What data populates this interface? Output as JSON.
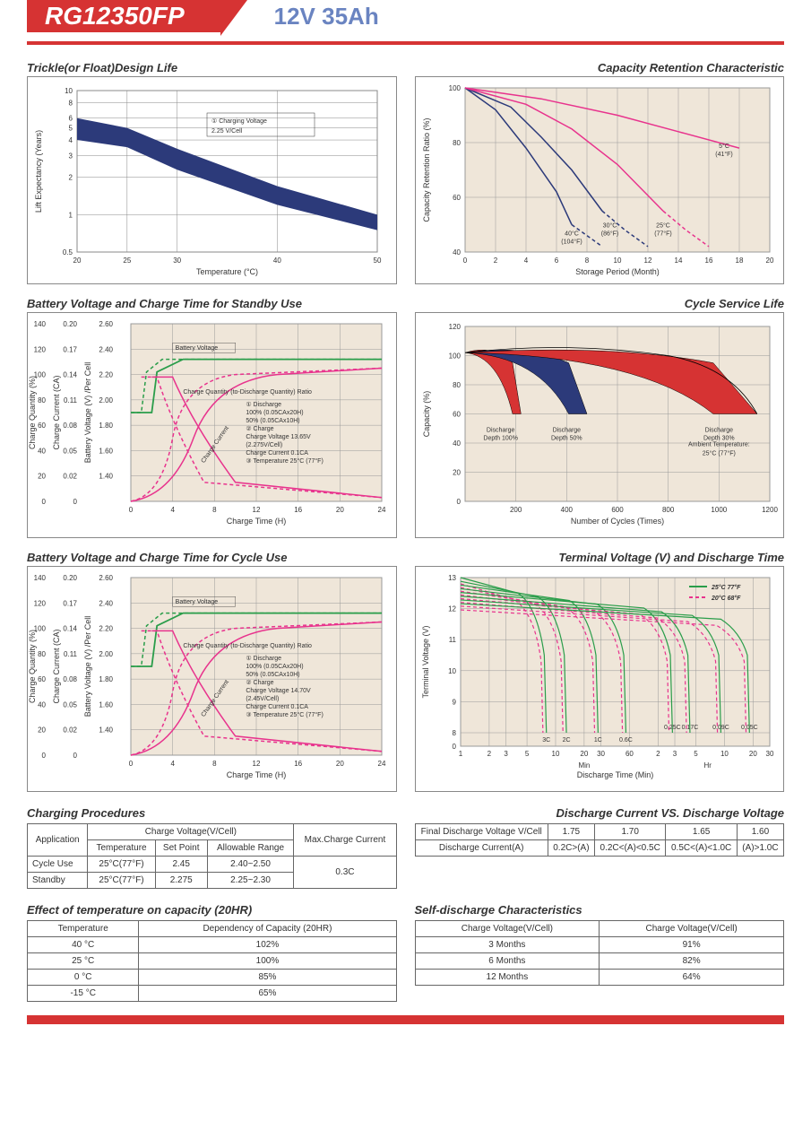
{
  "header": {
    "model": "RG12350FP",
    "spec": "12V  35Ah"
  },
  "chart1": {
    "title": "Trickle(or Float)Design Life",
    "xlabel": "Temperature (°C)",
    "ylabel": "Lift Expectancy (Years)",
    "xticks": [
      "20",
      "25",
      "30",
      "40",
      "50"
    ],
    "yticks": [
      "0.5",
      "1",
      "2",
      "3",
      "4",
      "5",
      "6",
      "8",
      "10"
    ],
    "anno": "① Charging Voltage\n2.25 V/Cell",
    "band_color": "#2c3a7a",
    "grid_color": "#888",
    "bg": "#ffffff"
  },
  "chart2": {
    "title": "Capacity Retention Characteristic",
    "xlabel": "Storage Period (Month)",
    "ylabel": "Capacity Retention Ratio (%)",
    "xticks": [
      "0",
      "2",
      "4",
      "6",
      "8",
      "10",
      "12",
      "14",
      "16",
      "18",
      "20"
    ],
    "yticks": [
      "40",
      "60",
      "80",
      "100"
    ],
    "series": [
      {
        "label": "40°C (104°F)",
        "color": "#2c3a7a",
        "x_end": 7,
        "y_end": 50,
        "dash_x": 9
      },
      {
        "label": "30°C (86°F)",
        "color": "#2c3a7a",
        "x_end": 9,
        "y_end": 55,
        "dash_x": 12
      },
      {
        "label": "25°C (77°F)",
        "color": "#e8338d",
        "x_end": 13,
        "y_end": 55,
        "dash_x": 16
      },
      {
        "label": "5°C (41°F)",
        "color": "#e8338d",
        "x_end": 18,
        "y_end": 78
      }
    ],
    "grid_color": "#999",
    "bg": "#efe6d9"
  },
  "chart3": {
    "title": "Battery Voltage and Charge Time for Standby Use",
    "xlabel": "Charge Time (H)",
    "y1label": "Charge Quantity (%)",
    "y2label": "Charge Current (CA)",
    "y3label": "Battery Voltage (V) /Per Cell",
    "xticks": [
      "0",
      "4",
      "8",
      "12",
      "16",
      "20",
      "24"
    ],
    "y1ticks": [
      "0",
      "20",
      "40",
      "60",
      "80",
      "100",
      "120",
      "140"
    ],
    "y2ticks": [
      "0",
      "0.02",
      "0.05",
      "0.08",
      "0.11",
      "0.14",
      "0.17",
      "0.20"
    ],
    "y3ticks": [
      "",
      "1.40",
      "1.60",
      "1.80",
      "2.00",
      "2.20",
      "2.40",
      "2.60"
    ],
    "anno_items": [
      "Battery Voltage",
      "Charge Quantity (to-Discharge Quantity) Ratio",
      "① Discharge",
      "  100% (0.05CAx20H)",
      "  50% (0.05CAx10H)",
      "② Charge",
      "  Charge Voltage 13.65V",
      "  (2.275V/Cell)",
      "  Charge Current 0.1CA",
      "③ Temperature 25°C (77°F)",
      "Charge Current"
    ],
    "c_green": "#2a9d4a",
    "c_pink": "#e8338d",
    "bg": "#efe6d9",
    "grid_color": "#999"
  },
  "chart4": {
    "title": "Cycle Service Life",
    "xlabel": "Number of Cycles (Times)",
    "ylabel": "Capacity (%)",
    "xticks": [
      "200",
      "400",
      "600",
      "800",
      "1000",
      "1200"
    ],
    "yticks": [
      "0",
      "20",
      "40",
      "60",
      "80",
      "100",
      "120"
    ],
    "bands": [
      {
        "label": "Discharge\nDepth 100%",
        "color": "#d63333"
      },
      {
        "label": "Discharge\nDepth 50%",
        "color": "#2c3a7a"
      },
      {
        "label": "Discharge\nDepth 30%",
        "color": "#d63333"
      }
    ],
    "anno": "Ambient Temperature:\n25°C (77°F)",
    "bg": "#efe6d9",
    "grid_color": "#999"
  },
  "chart5": {
    "title": "Battery Voltage and Charge Time for Cycle Use",
    "xlabel": "Charge Time (H)",
    "y1label": "Charge Quantity (%)",
    "y2label": "Charge Current (CA)",
    "y3label": "Battery Voltage (V) /Per Cell",
    "xticks": [
      "0",
      "4",
      "8",
      "12",
      "16",
      "20",
      "24"
    ],
    "y1ticks": [
      "0",
      "20",
      "40",
      "60",
      "80",
      "100",
      "120",
      "140"
    ],
    "y2ticks": [
      "0",
      "0.02",
      "0.05",
      "0.08",
      "0.11",
      "0.14",
      "0.17",
      "0.20"
    ],
    "y3ticks": [
      "",
      "1.40",
      "1.60",
      "1.80",
      "2.00",
      "2.20",
      "2.40",
      "2.60"
    ],
    "anno_items": [
      "Battery Voltage",
      "Charge Quantity (to-Discharge Quantity) Ratio",
      "① Discharge",
      "  100% (0.05CAx20H)",
      "  50% (0.05CAx10H)",
      "② Charge",
      "  Charge Voltage 14.70V",
      "  (2.45V/Cell)",
      "  Charge Current 0.1CA",
      "③ Temperature 25°C (77°F)",
      "Charge Current"
    ],
    "c_green": "#2a9d4a",
    "c_pink": "#e8338d",
    "bg": "#efe6d9",
    "grid_color": "#999"
  },
  "chart6": {
    "title": "Terminal Voltage (V) and Discharge Time",
    "xlabel": "Discharge Time (Min)",
    "ylabel": "Terminal Voltage (V)",
    "xticks_min": [
      "1",
      "2",
      "3",
      "5",
      "10",
      "20",
      "30",
      "60"
    ],
    "xticks_hr": [
      "2",
      "3",
      "5",
      "10",
      "20",
      "30"
    ],
    "yticks": [
      "0",
      "8",
      "9",
      "10",
      "11",
      "12",
      "13"
    ],
    "legend": [
      {
        "label": "25°C 77°F",
        "color": "#2a9d4a",
        "dash": false
      },
      {
        "label": "20°C 68°F",
        "color": "#e8338d",
        "dash": true
      }
    ],
    "curve_labels": [
      "3C",
      "2C",
      "1C",
      "0.6C",
      "0.25C",
      "0.17C",
      "0.09C",
      "0.05C"
    ],
    "min_label": "Min",
    "hr_label": "Hr",
    "bg": "#efe6d9",
    "grid_color": "#999"
  },
  "table1": {
    "title": "Charging Procedures",
    "headers": [
      "Application",
      "Charge Voltage(V/Cell)",
      "Max.Charge Current"
    ],
    "sub": [
      "Temperature",
      "Set Point",
      "Allowable Range"
    ],
    "rows": [
      [
        "Cycle Use",
        "25°C(77°F)",
        "2.45",
        "2.40~2.50"
      ],
      [
        "Standby",
        "25°C(77°F)",
        "2.275",
        "2.25~2.30"
      ]
    ],
    "max_current": "0.3C"
  },
  "table2": {
    "title": "Discharge Current VS. Discharge Voltage",
    "row1_h": "Final Discharge Voltage V/Cell",
    "row1": [
      "1.75",
      "1.70",
      "1.65",
      "1.60"
    ],
    "row2_h": "Discharge Current(A)",
    "row2": [
      "0.2C>(A)",
      "0.2C<(A)<0.5C",
      "0.5C<(A)<1.0C",
      "(A)>1.0C"
    ]
  },
  "table3": {
    "title": "Effect of temperature on capacity (20HR)",
    "headers": [
      "Temperature",
      "Dependency of Capacity (20HR)"
    ],
    "rows": [
      [
        "40 °C",
        "102%"
      ],
      [
        "25 °C",
        "100%"
      ],
      [
        "0 °C",
        "85%"
      ],
      [
        "-15 °C",
        "65%"
      ]
    ]
  },
  "table4": {
    "title": "Self-discharge Characteristics",
    "headers": [
      "Charge Voltage(V/Cell)",
      "Charge Voltage(V/Cell)"
    ],
    "rows": [
      [
        "3 Months",
        "91%"
      ],
      [
        "6 Months",
        "82%"
      ],
      [
        "12 Months",
        "64%"
      ]
    ]
  }
}
